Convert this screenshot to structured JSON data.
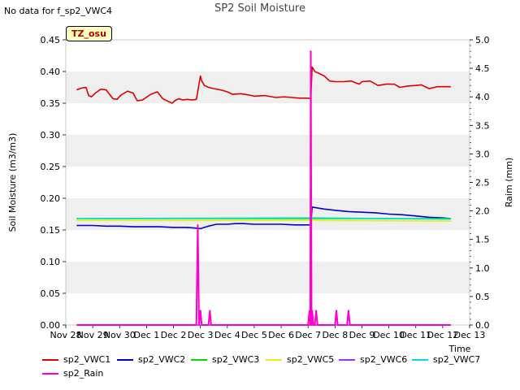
{
  "header": {
    "nodata_text": "No data for f_sp2_VWC4",
    "title": "SP2 Soil Moisture",
    "badge": "TZ_osu"
  },
  "chart_data": {
    "type": "line",
    "title": "SP2 Soil Moisture",
    "xlabel": "Time",
    "ylabel": "Soil Moisture (m3/m3)",
    "y2label": "Raim (mm)",
    "x_ticks": [
      "Nov 28",
      "Nov 29",
      "Nov 30",
      "Dec 1",
      "Dec 2",
      "Dec 3",
      "Dec 4",
      "Dec 5",
      "Dec 6",
      "Dec 7",
      "Dec 8",
      "Dec 9",
      "Dec 10",
      "Dec 11",
      "Dec 12",
      "Dec 13"
    ],
    "xlim": [
      0,
      15
    ],
    "ylim": [
      0,
      0.45
    ],
    "y_ticks": [
      "0.00",
      "0.05",
      "0.10",
      "0.15",
      "0.20",
      "0.25",
      "0.30",
      "0.35",
      "0.40",
      "0.45"
    ],
    "y2lim": [
      0,
      5.0
    ],
    "y2_ticks": [
      "0.0",
      "0.5",
      "1.0",
      "1.5",
      "2.0",
      "2.5",
      "3.0",
      "3.5",
      "4.0",
      "4.5",
      "5.0"
    ],
    "grid": "horizontal bands",
    "legend_position": "bottom",
    "series": [
      {
        "name": "sp2_VWC1",
        "color": "#dd0000",
        "axis": "left",
        "x": [
          0.4,
          0.6,
          0.75,
          0.85,
          0.95,
          1.1,
          1.3,
          1.5,
          1.75,
          1.9,
          2.05,
          2.3,
          2.5,
          2.65,
          2.85,
          2.95,
          3.15,
          3.4,
          3.6,
          3.8,
          3.95,
          4.05,
          4.2,
          4.35,
          4.5,
          4.7,
          4.85,
          5.0,
          5.05,
          5.15,
          5.3,
          5.5,
          5.75,
          6.0,
          6.2,
          6.5,
          6.8,
          7.0,
          7.4,
          7.8,
          8.1,
          8.4,
          8.7,
          9.0,
          9.1,
          9.15,
          9.25,
          9.4,
          9.6,
          9.8,
          10.0,
          10.3,
          10.6,
          10.9,
          11.0,
          11.3,
          11.6,
          11.9,
          12.2,
          12.4,
          12.7,
          13.0,
          13.2,
          13.5,
          13.8,
          14.0,
          14.3
        ],
        "values": [
          0.371,
          0.374,
          0.375,
          0.362,
          0.36,
          0.366,
          0.372,
          0.371,
          0.357,
          0.356,
          0.363,
          0.369,
          0.366,
          0.354,
          0.355,
          0.358,
          0.364,
          0.368,
          0.357,
          0.353,
          0.35,
          0.354,
          0.357,
          0.355,
          0.356,
          0.355,
          0.356,
          0.393,
          0.385,
          0.378,
          0.375,
          0.373,
          0.371,
          0.368,
          0.364,
          0.365,
          0.363,
          0.361,
          0.362,
          0.359,
          0.36,
          0.359,
          0.358,
          0.358,
          0.357,
          0.407,
          0.4,
          0.397,
          0.393,
          0.385,
          0.384,
          0.384,
          0.385,
          0.38,
          0.384,
          0.385,
          0.378,
          0.38,
          0.38,
          0.375,
          0.377,
          0.378,
          0.379,
          0.373,
          0.376,
          0.376,
          0.376
        ]
      },
      {
        "name": "sp2_VWC2",
        "color": "#0000cc",
        "axis": "left",
        "x": [
          0.4,
          1.0,
          1.5,
          2.0,
          2.5,
          3.0,
          3.5,
          4.0,
          4.5,
          4.8,
          5.0,
          5.3,
          5.6,
          6.0,
          6.3,
          6.6,
          7.0,
          7.5,
          8.0,
          8.5,
          9.0,
          9.1,
          9.15,
          9.3,
          9.6,
          10.0,
          10.5,
          11.0,
          11.5,
          12.0,
          12.5,
          13.0,
          13.5,
          14.0,
          14.3
        ],
        "values": [
          0.157,
          0.157,
          0.156,
          0.156,
          0.155,
          0.155,
          0.155,
          0.154,
          0.154,
          0.153,
          0.152,
          0.156,
          0.159,
          0.159,
          0.16,
          0.16,
          0.159,
          0.159,
          0.159,
          0.158,
          0.158,
          0.158,
          0.186,
          0.185,
          0.183,
          0.181,
          0.179,
          0.178,
          0.177,
          0.175,
          0.174,
          0.172,
          0.17,
          0.169,
          0.168
        ]
      },
      {
        "name": "sp2_VWC3",
        "color": "#00dd00",
        "axis": "left",
        "x": [
          0.4,
          14.3
        ],
        "values": [
          0.168,
          0.168
        ]
      },
      {
        "name": "sp2_VWC5",
        "color": "#eeee00",
        "axis": "left",
        "x": [
          0.4,
          9.1,
          14.3
        ],
        "values": [
          0.165,
          0.165,
          0.164
        ]
      },
      {
        "name": "sp2_VWC6",
        "color": "#9933ff",
        "axis": "left",
        "x": [
          0.4,
          14.3
        ],
        "values": [
          0.0,
          0.0
        ]
      },
      {
        "name": "sp2_VWC7",
        "color": "#00dddd",
        "axis": "left",
        "x": [
          0.4,
          9.1,
          14.3
        ],
        "values": [
          0.168,
          0.169,
          0.167
        ]
      },
      {
        "name": "sp2_Rain",
        "color": "#ff00cc",
        "axis": "right",
        "x": [
          0.4,
          4.85,
          4.9,
          4.95,
          5.0,
          5.05,
          5.3,
          5.35,
          5.4,
          9.0,
          9.05,
          9.08,
          9.1,
          9.13,
          9.15,
          9.2,
          9.25,
          9.3,
          9.35,
          9.4,
          9.45,
          9.5,
          10.0,
          10.05,
          10.1,
          10.45,
          10.5,
          10.55,
          14.3
        ],
        "values": [
          0,
          0,
          1.75,
          0,
          0.25,
          0,
          0,
          0.25,
          0,
          0,
          0.25,
          0,
          4.8,
          0,
          0.25,
          0,
          0,
          0.25,
          0,
          0,
          0,
          0,
          0,
          0.25,
          0,
          0,
          0.25,
          0,
          0
        ]
      }
    ]
  }
}
